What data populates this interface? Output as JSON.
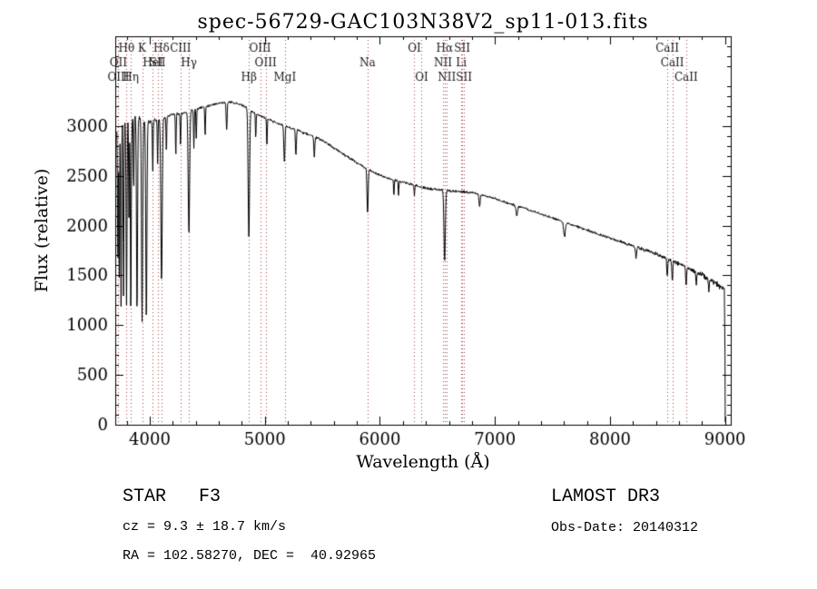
{
  "chart_data": {
    "type": "line",
    "title": "spec-56729-GAC103N38V2_sp11-013.fits",
    "xlabel": "Wavelength (Å)",
    "ylabel": "Flux (relative)",
    "xlim": [
      3700,
      9050
    ],
    "ylim": [
      0,
      3900
    ],
    "xticks": [
      4000,
      5000,
      6000,
      7000,
      8000,
      9000
    ],
    "yticks": [
      0,
      500,
      1000,
      1500,
      2000,
      2500,
      3000
    ],
    "x_minor_step": 200,
    "y_minor_step": 100,
    "grid": false,
    "legend": "none",
    "line_color": "#000000",
    "frame_color": "#000000",
    "marker_line_color": "#a84442",
    "marker_label_color": "#1a1a1a",
    "continuum": [
      [
        3714,
        2980
      ],
      [
        3760,
        3030
      ],
      [
        3800,
        3050
      ],
      [
        3850,
        3080
      ],
      [
        3900,
        3080
      ],
      [
        3950,
        3060
      ],
      [
        4000,
        3040
      ],
      [
        4050,
        3060
      ],
      [
        4100,
        3070
      ],
      [
        4200,
        3120
      ],
      [
        4300,
        3130
      ],
      [
        4400,
        3170
      ],
      [
        4500,
        3200
      ],
      [
        4600,
        3230
      ],
      [
        4700,
        3240
      ],
      [
        4800,
        3210
      ],
      [
        4900,
        3140
      ],
      [
        5000,
        3080
      ],
      [
        5100,
        3030
      ],
      [
        5200,
        2990
      ],
      [
        5300,
        2950
      ],
      [
        5400,
        2905
      ],
      [
        5500,
        2855
      ],
      [
        5600,
        2780
      ],
      [
        5700,
        2705
      ],
      [
        5800,
        2630
      ],
      [
        5900,
        2560
      ],
      [
        6000,
        2505
      ],
      [
        6100,
        2465
      ],
      [
        6200,
        2435
      ],
      [
        6300,
        2405
      ],
      [
        6400,
        2375
      ],
      [
        6500,
        2360
      ],
      [
        6600,
        2350
      ],
      [
        6700,
        2340
      ],
      [
        6800,
        2330
      ],
      [
        6900,
        2305
      ],
      [
        7000,
        2270
      ],
      [
        7100,
        2230
      ],
      [
        7200,
        2195
      ],
      [
        7300,
        2155
      ],
      [
        7400,
        2115
      ],
      [
        7500,
        2075
      ],
      [
        7600,
        2035
      ],
      [
        7700,
        1995
      ],
      [
        7800,
        1955
      ],
      [
        7900,
        1915
      ],
      [
        8000,
        1875
      ],
      [
        8100,
        1835
      ],
      [
        8200,
        1795
      ],
      [
        8300,
        1755
      ],
      [
        8400,
        1715
      ],
      [
        8500,
        1665
      ],
      [
        8600,
        1615
      ],
      [
        8700,
        1565
      ],
      [
        8800,
        1505
      ],
      [
        8900,
        1435
      ],
      [
        8960,
        1385
      ],
      [
        9000,
        1355
      ]
    ],
    "absorption_lines": [
      [
        3722,
        1350,
        3
      ],
      [
        3734,
        1600,
        3
      ],
      [
        3750,
        1850,
        3.5
      ],
      [
        3771,
        1750,
        3.5
      ],
      [
        3798,
        1850,
        4
      ],
      [
        3819,
        950,
        3
      ],
      [
        3835,
        1950,
        4
      ],
      [
        3860,
        750,
        3
      ],
      [
        3889,
        1950,
        4.5
      ],
      [
        3933,
        2050,
        5
      ],
      [
        3970,
        1980,
        5
      ],
      [
        4026,
        520,
        3
      ],
      [
        4068,
        430,
        3
      ],
      [
        4102,
        1620,
        6
      ],
      [
        4144,
        360,
        3
      ],
      [
        4226,
        420,
        3
      ],
      [
        4267,
        320,
        3
      ],
      [
        4340,
        1230,
        6
      ],
      [
        4383,
        380,
        3
      ],
      [
        4404,
        300,
        3
      ],
      [
        4481,
        300,
        3
      ],
      [
        4668,
        280,
        4
      ],
      [
        4861,
        1300,
        6
      ],
      [
        4921,
        260,
        3
      ],
      [
        5018,
        270,
        3
      ],
      [
        5170,
        360,
        5
      ],
      [
        5270,
        260,
        4
      ],
      [
        5430,
        200,
        4
      ],
      [
        5893,
        440,
        5
      ],
      [
        6122,
        160,
        3
      ],
      [
        6162,
        140,
        3
      ],
      [
        6300,
        110,
        3
      ],
      [
        6563,
        710,
        6
      ],
      [
        6867,
        130,
        5
      ],
      [
        7190,
        100,
        7
      ],
      [
        7605,
        150,
        7
      ],
      [
        8227,
        110,
        5
      ],
      [
        8498,
        170,
        4
      ],
      [
        8542,
        210,
        4
      ],
      [
        8662,
        190,
        4
      ],
      [
        8750,
        130,
        4
      ],
      [
        8860,
        130,
        4
      ]
    ],
    "noise": {
      "base": 15,
      "blue": 85,
      "blue_scale": 110,
      "red": 26,
      "red_scale": 450,
      "seed": 11
    },
    "spectrum_start": 3714,
    "spectrum_end": 8996,
    "end_drop": [
      [
        9000,
        700
      ],
      [
        9002,
        25
      ]
    ],
    "markers": [
      {
        "label": "Hθ",
        "wl": 3798,
        "row": 0
      },
      {
        "label": "K",
        "wl": 3933,
        "row": 0
      },
      {
        "label": "Hδ",
        "wl": 4102,
        "row": 0
      },
      {
        "label": "CIII",
        "wl": 4267,
        "row": 0
      },
      {
        "label": "OIII",
        "wl": 4959,
        "row": 0
      },
      {
        "label": "OI",
        "wl": 6300,
        "row": 0
      },
      {
        "label": "Hα",
        "wl": 6563,
        "row": 0
      },
      {
        "label": "SII",
        "wl": 6716,
        "row": 0
      },
      {
        "label": "CaII",
        "wl": 8498,
        "row": 0
      },
      {
        "label": "OII",
        "wl": 3727,
        "row": 1
      },
      {
        "label": "HeI",
        "wl": 4026,
        "row": 1
      },
      {
        "label": "SII",
        "wl": 4068,
        "row": 1
      },
      {
        "label": "Hγ",
        "wl": 4340,
        "row": 1
      },
      {
        "label": "OIII",
        "wl": 5007,
        "row": 1
      },
      {
        "label": "Na",
        "wl": 5893,
        "row": 1
      },
      {
        "label": "NII",
        "wl": 6548,
        "row": 1
      },
      {
        "label": "Li",
        "wl": 6708,
        "row": 1
      },
      {
        "label": "CaII",
        "wl": 8542,
        "row": 1
      },
      {
        "label": "OIII",
        "wl": 3727,
        "row": 2
      },
      {
        "label": "Hη",
        "wl": 3835,
        "row": 2
      },
      {
        "label": "Hβ",
        "wl": 4861,
        "row": 2
      },
      {
        "label": "MgI",
        "wl": 5175,
        "row": 2
      },
      {
        "label": "OI",
        "wl": 6363,
        "row": 2
      },
      {
        "label": "NII",
        "wl": 6583,
        "row": 2
      },
      {
        "label": "SII",
        "wl": 6731,
        "row": 2
      },
      {
        "label": "CaII",
        "wl": 8662,
        "row": 2
      }
    ]
  },
  "annotations": {
    "classification": "STAR   F3",
    "cz": "cz = 9.3 ± 18.7 km/s",
    "radec": "RA = 102.58270, DEC =  40.92965",
    "survey": "LAMOST DR3",
    "obs_date": "Obs-Date: 20140312"
  }
}
